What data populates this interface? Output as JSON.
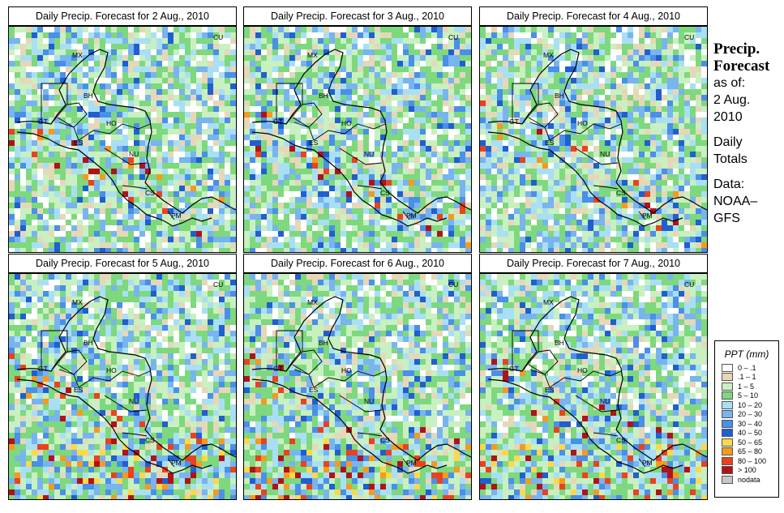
{
  "panels": [
    {
      "title": "Daily Precip. Forecast for  2 Aug., 2010"
    },
    {
      "title": "Daily Precip. Forecast for  3 Aug., 2010"
    },
    {
      "title": "Daily Precip. Forecast for  4 Aug., 2010"
    },
    {
      "title": "Daily Precip. Forecast for  5 Aug., 2010"
    },
    {
      "title": "Daily Precip. Forecast for  6 Aug., 2010"
    },
    {
      "title": "Daily Precip. Forecast for  7 Aug., 2010"
    }
  ],
  "country_labels": [
    "MX",
    "BH",
    "GT",
    "HO",
    "ES",
    "NU",
    "CS",
    "PM",
    "CU"
  ],
  "sidebar": {
    "heading_line1": "Precip.",
    "heading_line2": "Forecast",
    "asof_line1": "as of:",
    "asof_line2": "2 Aug.",
    "asof_line3": "2010",
    "totals_line1": "Daily",
    "totals_line2": "Totals",
    "source_line1": "Data:",
    "source_line2": "NOAA–",
    "source_line3": "GFS"
  },
  "legend": {
    "title": "PPT (mm)",
    "items": [
      {
        "label": "0 – .1",
        "color": "#ffffff"
      },
      {
        "label": ".1 – 1",
        "color": "#e6d7b8"
      },
      {
        "label": "1 – 5",
        "color": "#c8f0c0"
      },
      {
        "label": "5 – 10",
        "color": "#7ed87e"
      },
      {
        "label": "10 – 20",
        "color": "#a9dff5"
      },
      {
        "label": "20 – 30",
        "color": "#78b4ee"
      },
      {
        "label": "30 – 40",
        "color": "#4a8fe8"
      },
      {
        "label": "40 – 50",
        "color": "#1f5fd0"
      },
      {
        "label": "50 – 65",
        "color": "#ffd84a"
      },
      {
        "label": "65 – 80",
        "color": "#f59a1e"
      },
      {
        "label": "80 – 100",
        "color": "#e8431e"
      },
      {
        "label": "> 100",
        "color": "#b0121a"
      },
      {
        "label": "nodata",
        "color": "#c8c8c8"
      }
    ]
  }
}
